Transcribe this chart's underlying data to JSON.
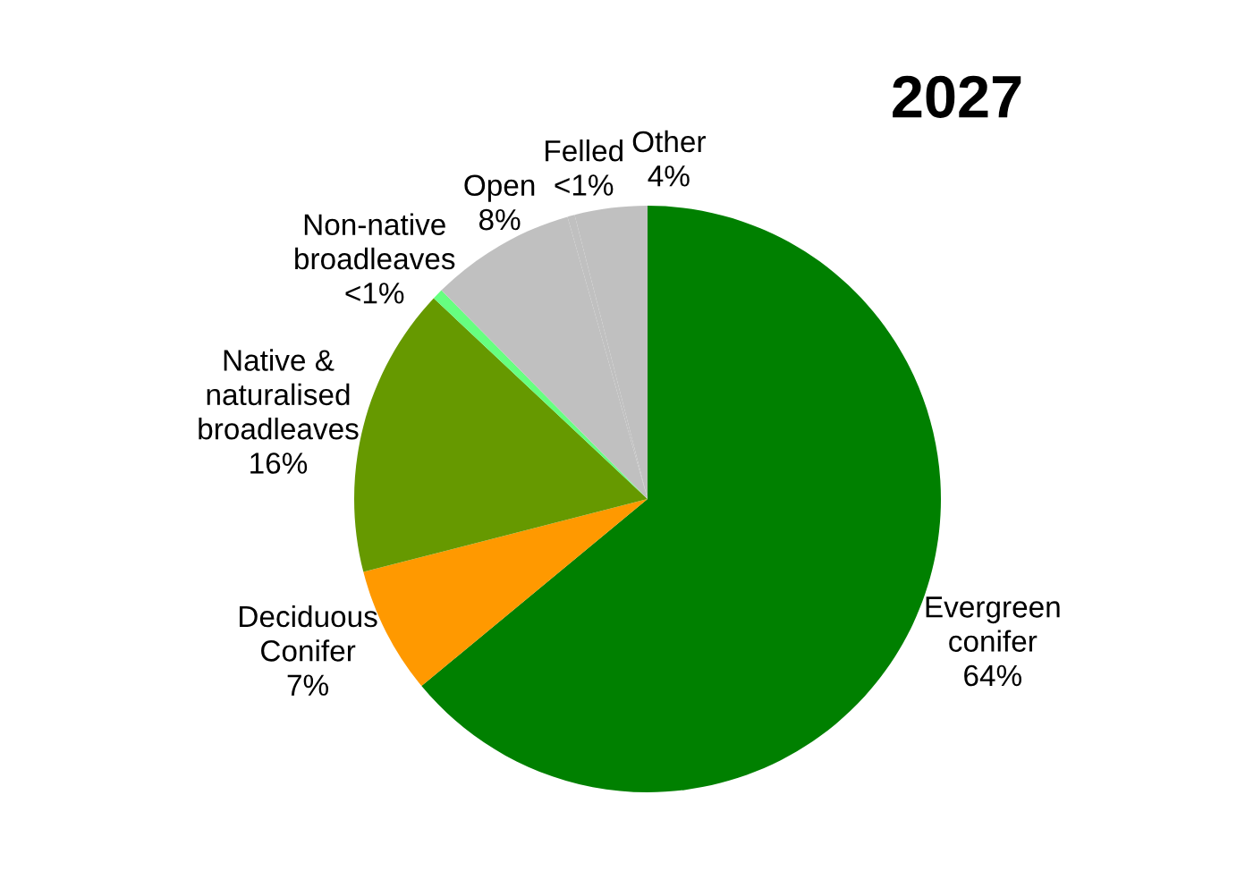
{
  "chart_data": {
    "type": "pie",
    "title": "2027",
    "categories": [
      "Evergreen\nconifer",
      "Deciduous\nConifer",
      "Native &\nnaturalised\nbroadleaves",
      "Non-native\nbroadleaves",
      "Open",
      "Felled",
      "Other"
    ],
    "values": [
      64,
      7,
      16,
      0.6,
      8,
      0.4,
      4
    ],
    "value_labels": [
      "64%",
      "7%",
      "16%",
      "<1%",
      "8%",
      "<1%",
      "4%"
    ],
    "colors": [
      "#008000",
      "#ff9900",
      "#669900",
      "#66ff80",
      "#c0c0c0",
      "#c0c0c0",
      "#c0c0c0"
    ]
  }
}
